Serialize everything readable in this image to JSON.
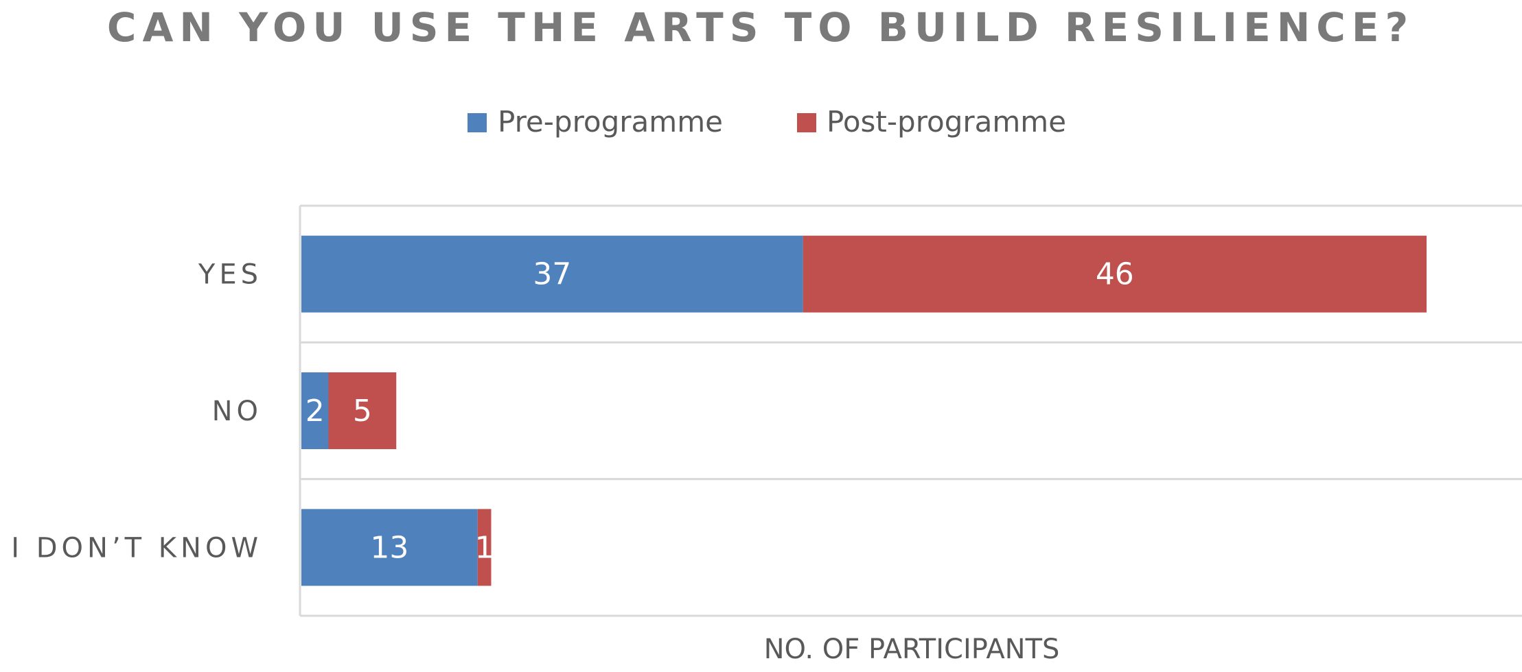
{
  "chart_data": {
    "type": "bar",
    "orientation": "horizontal",
    "stacked": true,
    "title": "CAN YOU USE THE ARTS TO BUILD RESILIENCE?",
    "xlabel": "NO. OF PARTICIPANTS",
    "ylabel": "",
    "categories": [
      "YES",
      "NO",
      "I DON’T KNOW"
    ],
    "series": [
      {
        "name": "Pre-programme",
        "values": [
          37,
          2,
          13
        ],
        "color": "#4f81bd"
      },
      {
        "name": "Post-programme",
        "values": [
          46,
          5,
          1
        ],
        "color": "#c0504d"
      }
    ],
    "xlim": [
      0,
      90
    ],
    "data_labels": true,
    "grid": true,
    "legend_position": "top"
  }
}
